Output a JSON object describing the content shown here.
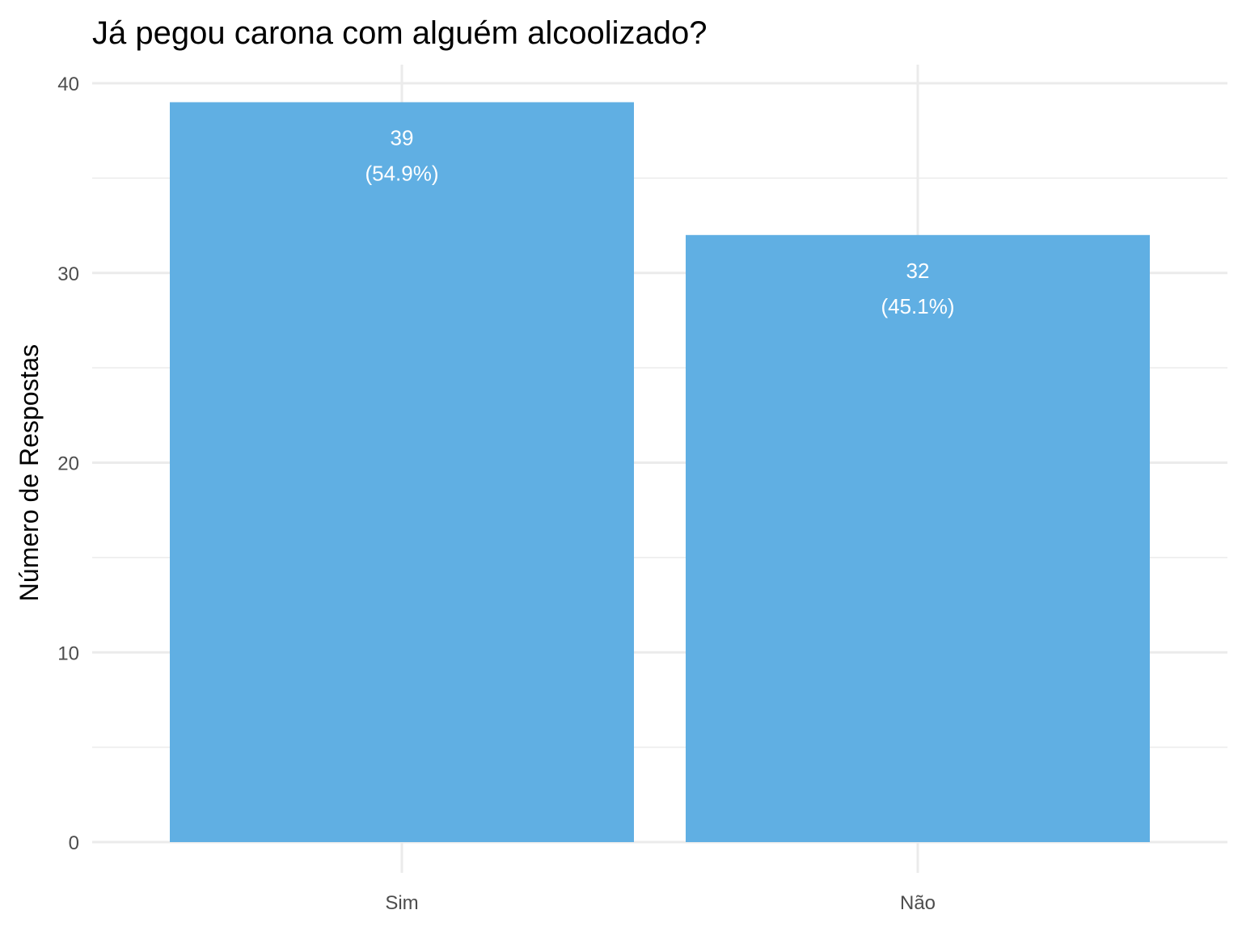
{
  "chart_data": {
    "type": "bar",
    "title": "Já pegou carona com alguém alcoolizado?",
    "xlabel": "",
    "ylabel": "Número de Respostas",
    "categories": [
      "Sim",
      "Não"
    ],
    "values": [
      39,
      32
    ],
    "labels": [
      {
        "count": "39",
        "percent": "(54.9%)"
      },
      {
        "count": "32",
        "percent": "(45.1%)"
      }
    ],
    "ylim": [
      0,
      40
    ],
    "yticks": [
      "0",
      "10",
      "20",
      "30",
      "40"
    ],
    "grid": true,
    "legend": "none",
    "bar_color": "#5DADE2"
  }
}
